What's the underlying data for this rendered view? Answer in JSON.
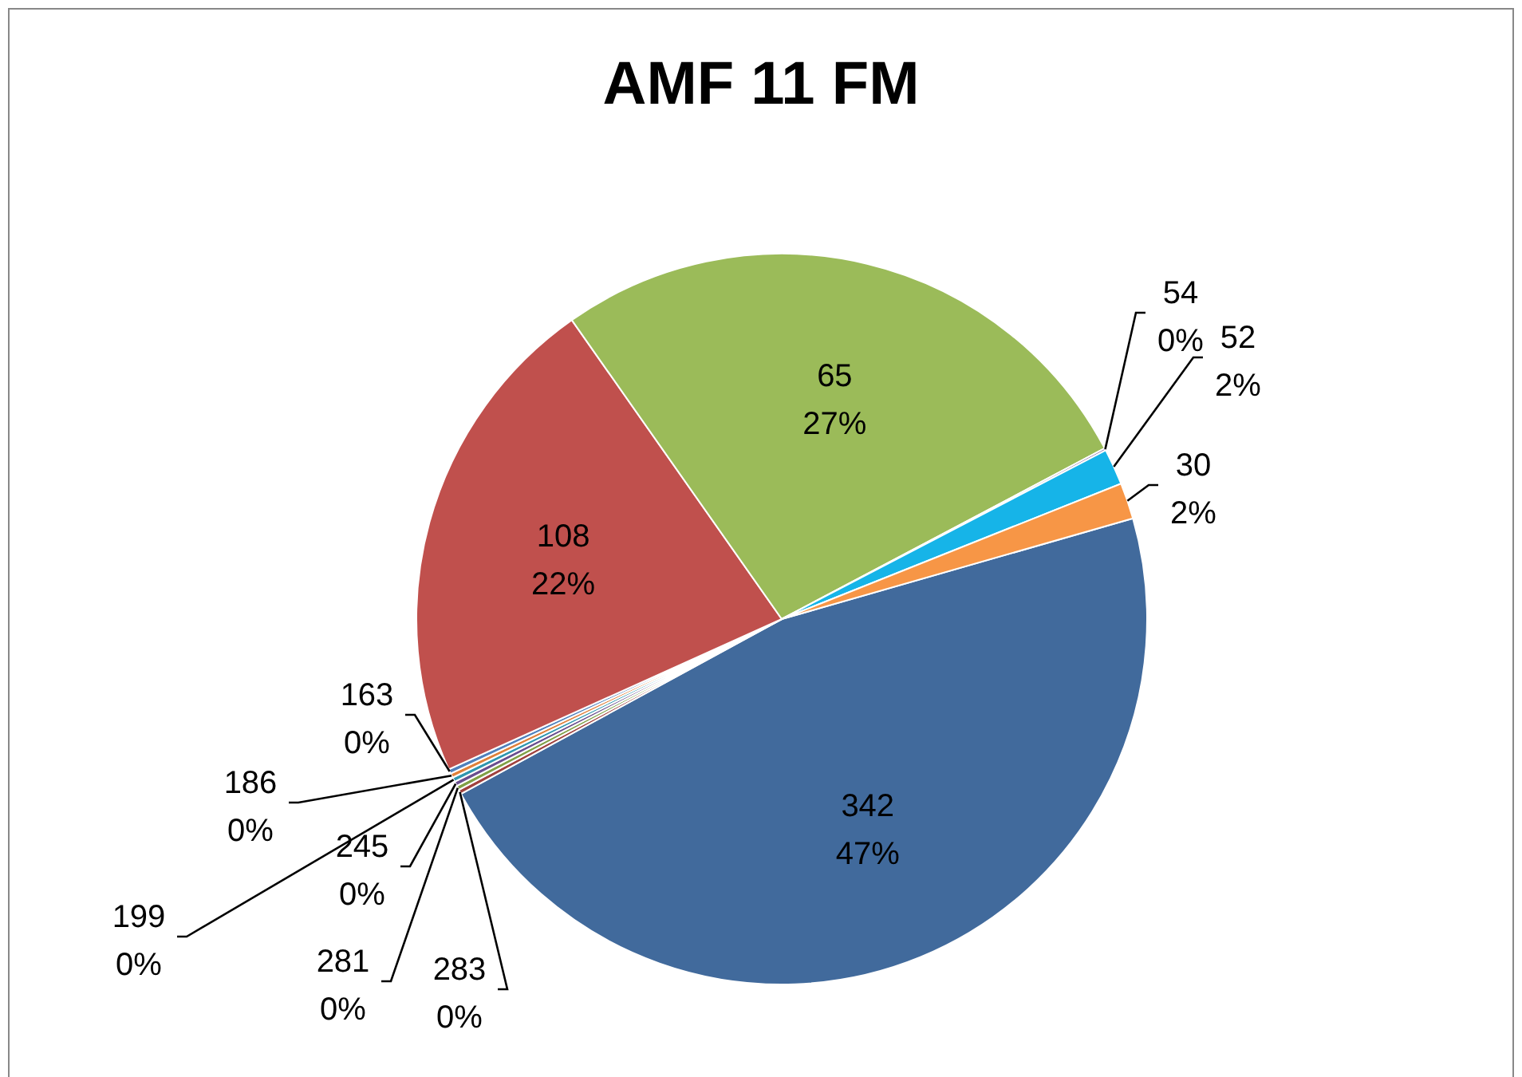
{
  "chart_data": {
    "type": "pie",
    "title": "AMF 11 FM",
    "categories": [
      "342",
      "283",
      "281",
      "245",
      "199",
      "186",
      "163",
      "108",
      "65",
      "54",
      "52",
      "30"
    ],
    "values": [
      46.5,
      0.2,
      0.2,
      0.2,
      0.2,
      0.2,
      0.2,
      22,
      27,
      0.1,
      1.6,
      1.6
    ],
    "value_labels": [
      "47%",
      "0%",
      "0%",
      "0%",
      "0%",
      "0%",
      "0%",
      "22%",
      "27%",
      "0%",
      "2%",
      "2%"
    ],
    "colors": [
      "#416a9c",
      "#a0413e",
      "#80a046",
      "#6a4e8e",
      "#2f96b0",
      "#e0803a",
      "#4f81bd",
      "#c0504d",
      "#9bbb59",
      "#8064a2",
      "#16b4e8",
      "#f79646"
    ]
  }
}
